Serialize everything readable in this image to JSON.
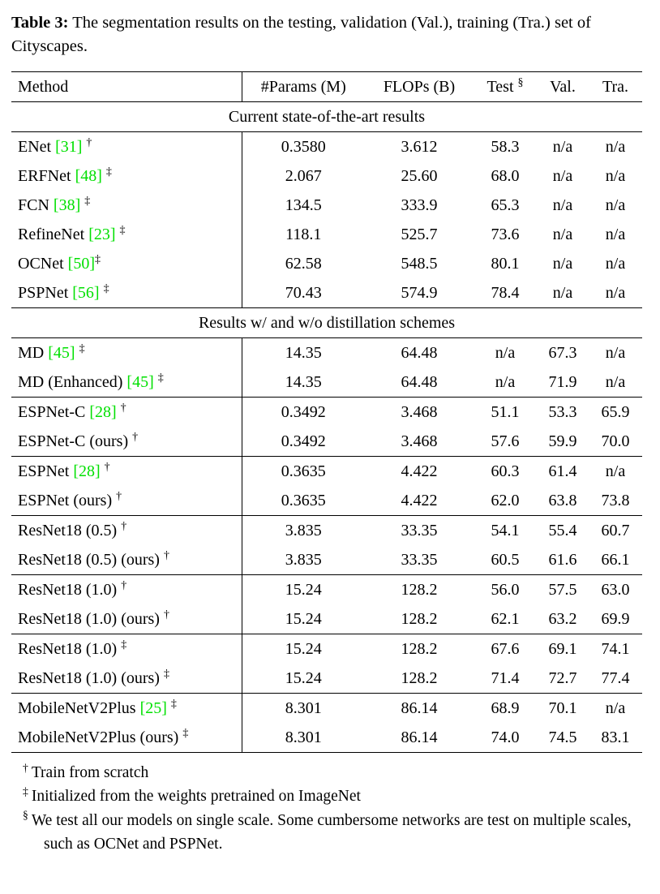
{
  "colors": {
    "citation_green": "#00e000"
  },
  "caption": {
    "label": "Table 3:",
    "text": " The segmentation results on the testing, validation (Val.), training (Tra.) set of Cityscapes."
  },
  "table": {
    "headers": [
      "Method",
      "#Params (M)",
      "FLOPs (B)",
      "Test",
      "Val.",
      "Tra."
    ],
    "test_mark": "§",
    "sections": [
      {
        "title": "Current state-of-the-art results",
        "groups": [
          [
            {
              "m": "ENet ",
              "cite": "[31]",
              "m2": " ",
              "sup": "†",
              "params": "0.3580",
              "flops": "3.612",
              "test": "58.3",
              "val": "n/a",
              "tra": "n/a"
            },
            {
              "m": "ERFNet ",
              "cite": "[48]",
              "m2": " ",
              "sup": "‡",
              "params": "2.067",
              "flops": "25.60",
              "test": "68.0",
              "val": "n/a",
              "tra": "n/a"
            },
            {
              "m": "FCN ",
              "cite": "[38]",
              "m2": " ",
              "sup": "‡",
              "params": "134.5",
              "flops": "333.9",
              "test": "65.3",
              "val": "n/a",
              "tra": "n/a"
            },
            {
              "m": "RefineNet ",
              "cite": "[23]",
              "m2": " ",
              "sup": "‡",
              "params": "118.1",
              "flops": "525.7",
              "test": "73.6",
              "val": "n/a",
              "tra": "n/a"
            },
            {
              "m": "OCNet ",
              "cite": "[50]",
              "m2": "",
              "sup": "‡",
              "params": "62.58",
              "flops": "548.5",
              "test": "80.1",
              "val": "n/a",
              "tra": "n/a"
            },
            {
              "m": "PSPNet ",
              "cite": "[56]",
              "m2": " ",
              "sup": "‡",
              "params": "70.43",
              "flops": "574.9",
              "test": "78.4",
              "val": "n/a",
              "tra": "n/a"
            }
          ]
        ]
      },
      {
        "title": "Results w/ and w/o distillation schemes",
        "groups": [
          [
            {
              "m": "MD ",
              "cite": "[45]",
              "m2": " ",
              "sup": "‡",
              "params": "14.35",
              "flops": "64.48",
              "test": "n/a",
              "val": "67.3",
              "tra": "n/a"
            },
            {
              "m": "MD (Enhanced) ",
              "cite": "[45]",
              "m2": " ",
              "sup": "‡",
              "params": "14.35",
              "flops": "64.48",
              "test": "n/a",
              "val": "71.9",
              "tra": "n/a"
            }
          ],
          [
            {
              "m": "ESPNet-C ",
              "cite": "[28]",
              "m2": " ",
              "sup": "†",
              "params": "0.3492",
              "flops": "3.468",
              "test": "51.1",
              "val": "53.3",
              "tra": "65.9"
            },
            {
              "m": "ESPNet-C (ours) ",
              "cite": "",
              "m2": "",
              "sup": "†",
              "params": "0.3492",
              "flops": "3.468",
              "test": "57.6",
              "val": "59.9",
              "tra": "70.0"
            }
          ],
          [
            {
              "m": "ESPNet ",
              "cite": "[28]",
              "m2": " ",
              "sup": "†",
              "params": "0.3635",
              "flops": "4.422",
              "test": "60.3",
              "val": "61.4",
              "tra": "n/a"
            },
            {
              "m": "ESPNet (ours) ",
              "cite": "",
              "m2": "",
              "sup": "†",
              "params": "0.3635",
              "flops": "4.422",
              "test": "62.0",
              "val": "63.8",
              "tra": "73.8"
            }
          ],
          [
            {
              "m": "ResNet18 (0.5) ",
              "cite": "",
              "m2": "",
              "sup": "†",
              "params": "3.835",
              "flops": "33.35",
              "test": "54.1",
              "val": "55.4",
              "tra": "60.7"
            },
            {
              "m": "ResNet18 (0.5) (ours) ",
              "cite": "",
              "m2": "",
              "sup": "†",
              "params": "3.835",
              "flops": "33.35",
              "test": "60.5",
              "val": "61.6",
              "tra": "66.1"
            }
          ],
          [
            {
              "m": "ResNet18 (1.0) ",
              "cite": "",
              "m2": "",
              "sup": "†",
              "params": "15.24",
              "flops": "128.2",
              "test": "56.0",
              "val": "57.5",
              "tra": "63.0"
            },
            {
              "m": "ResNet18 (1.0) (ours) ",
              "cite": "",
              "m2": "",
              "sup": "†",
              "params": "15.24",
              "flops": "128.2",
              "test": "62.1",
              "val": "63.2",
              "tra": "69.9"
            }
          ],
          [
            {
              "m": "ResNet18 (1.0) ",
              "cite": "",
              "m2": "",
              "sup": "‡",
              "params": "15.24",
              "flops": "128.2",
              "test": "67.6",
              "val": "69.1",
              "tra": "74.1"
            },
            {
              "m": "ResNet18 (1.0) (ours) ",
              "cite": "",
              "m2": "",
              "sup": "‡",
              "params": "15.24",
              "flops": "128.2",
              "test": "71.4",
              "val": "72.7",
              "tra": "77.4"
            }
          ],
          [
            {
              "m": "MobileNetV2Plus ",
              "cite": "[25]",
              "m2": " ",
              "sup": "‡",
              "params": "8.301",
              "flops": "86.14",
              "test": "68.9",
              "val": "70.1",
              "tra": "n/a"
            },
            {
              "m": "MobileNetV2Plus (ours) ",
              "cite": "",
              "m2": "",
              "sup": "‡",
              "params": "8.301",
              "flops": "86.14",
              "test": "74.0",
              "val": "74.5",
              "tra": "83.1"
            }
          ]
        ]
      }
    ]
  },
  "footnotes": [
    {
      "mark": "†",
      "text": "Train from scratch"
    },
    {
      "mark": "‡",
      "text": "Initialized from the weights pretrained on ImageNet"
    },
    {
      "mark": "§",
      "text": "We test all our models on single scale. Some cumbersome networks are test on multiple scales, such as OCNet and PSPNet."
    }
  ]
}
